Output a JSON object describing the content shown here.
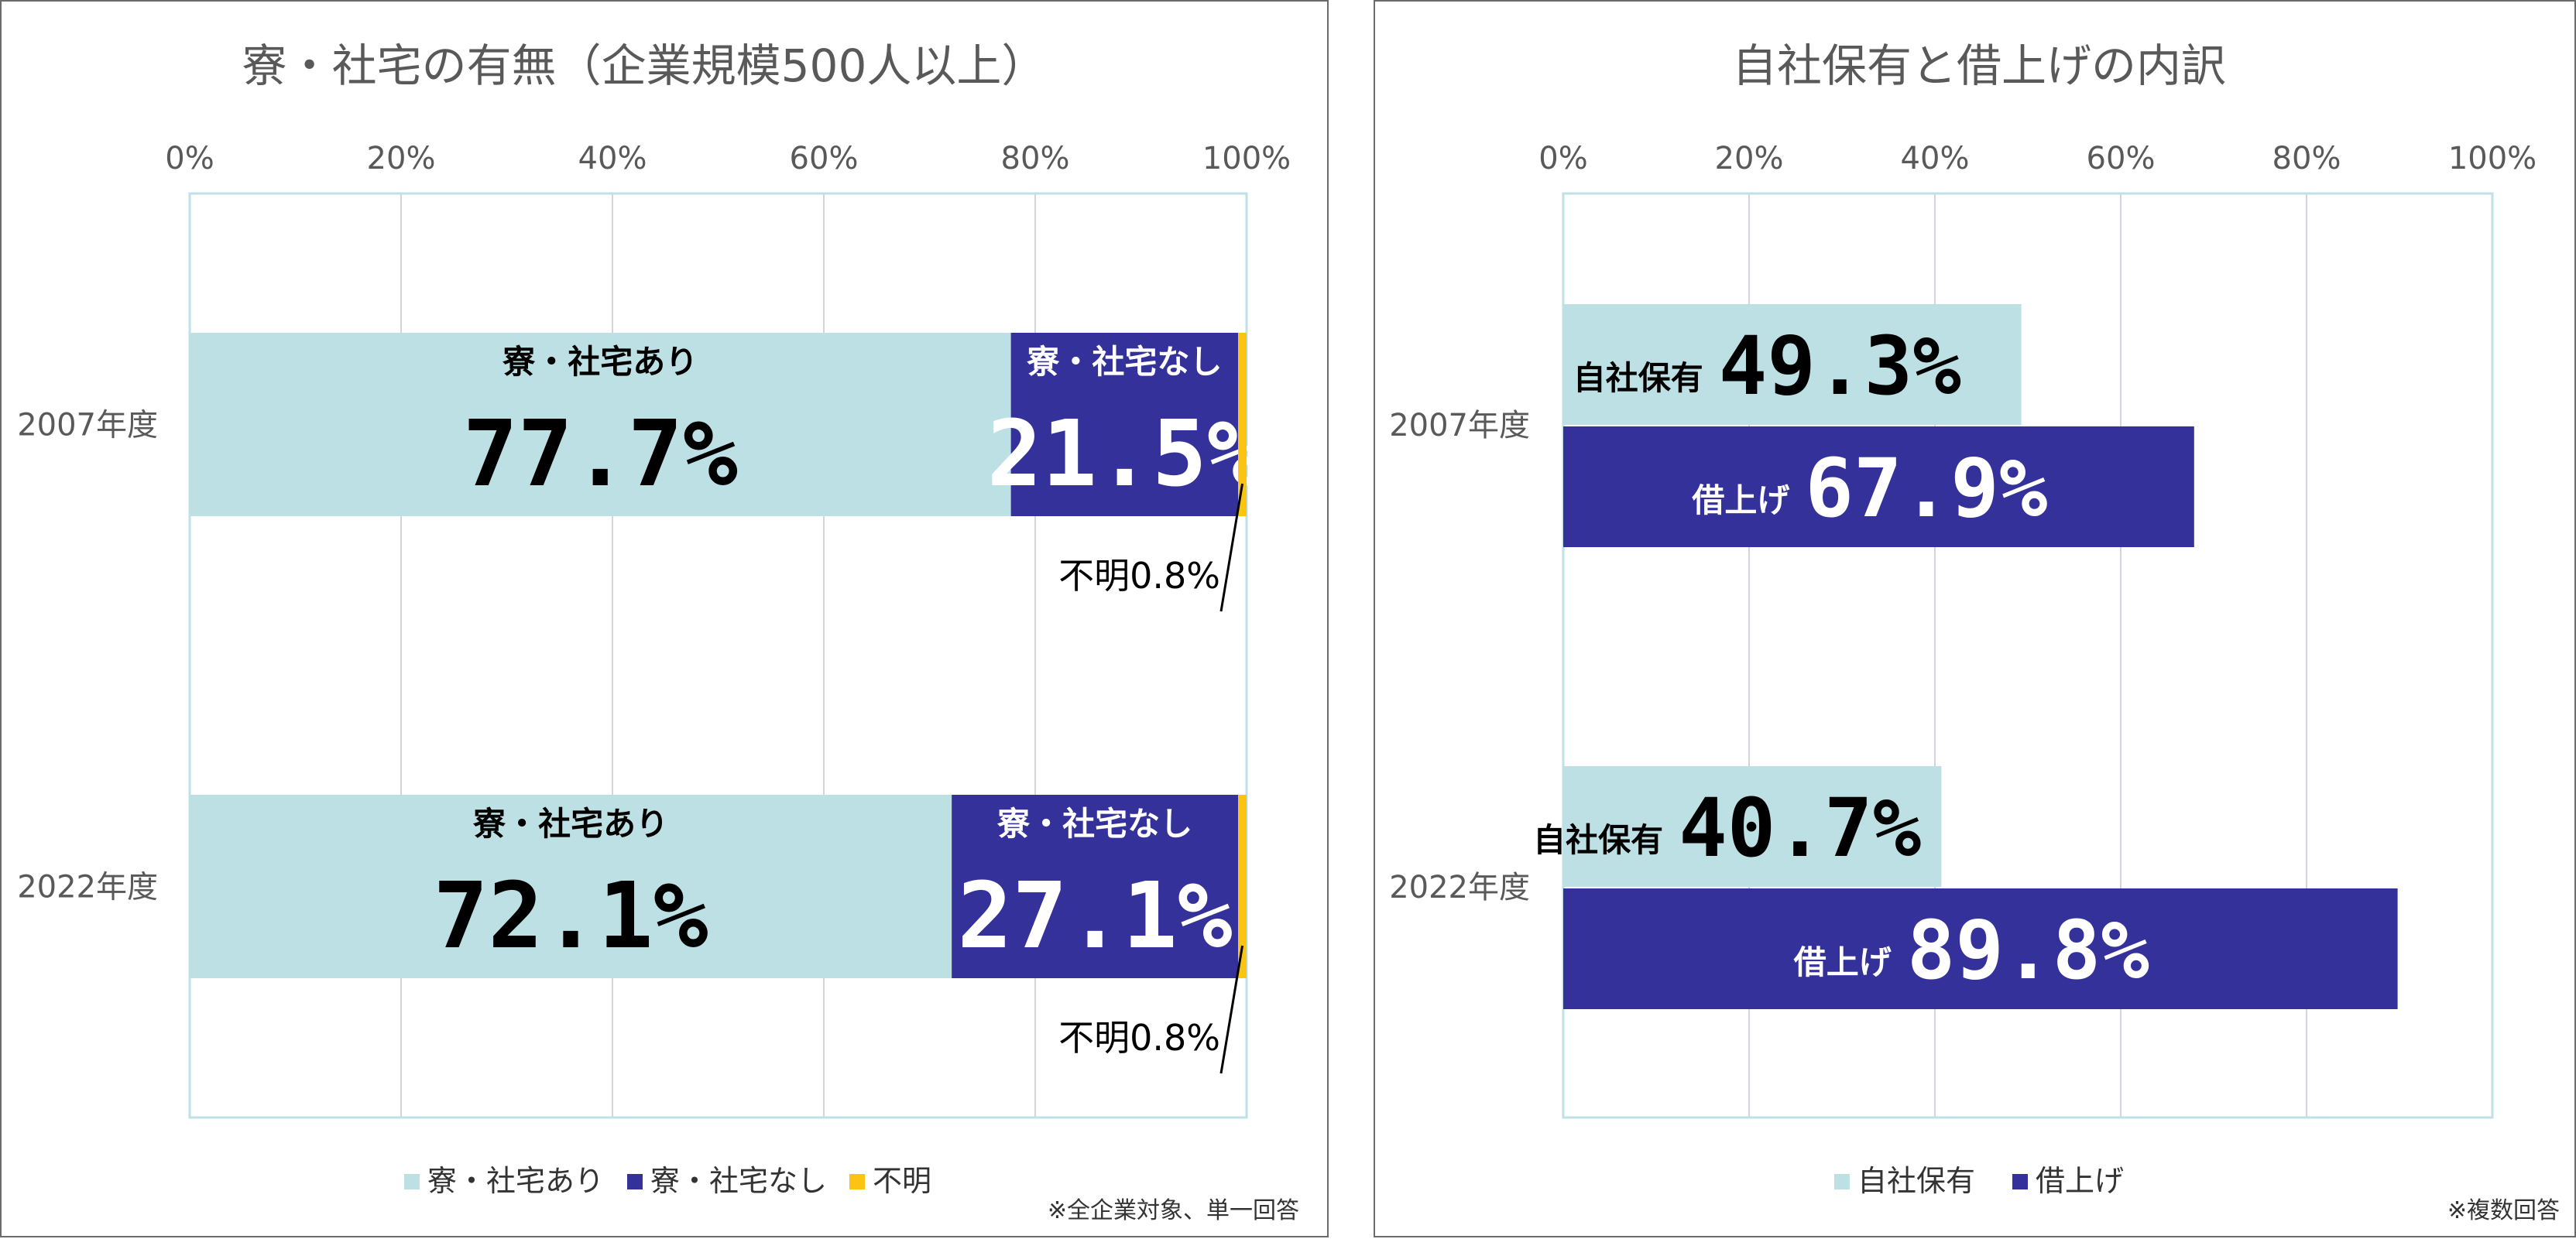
{
  "chart_data": [
    {
      "type": "bar",
      "orientation": "horizontal",
      "stacked": true,
      "title": "寮・社宅の有無（企業規模500人以上）",
      "categories": [
        "2007年度",
        "2022年度"
      ],
      "series": [
        {
          "name": "寮・社宅あり",
          "values": [
            77.7,
            72.1
          ],
          "labels": [
            "77.7%",
            "72.1%"
          ],
          "color": "#bde0e4"
        },
        {
          "name": "寮・社宅なし",
          "values": [
            21.5,
            27.1
          ],
          "labels": [
            "21.5%",
            "27.1%"
          ],
          "color": "#34329a"
        },
        {
          "name": "不明",
          "values": [
            0.8,
            0.8
          ],
          "labels": [
            "不明0.8%",
            "不明0.8%"
          ],
          "color": "#fbc412"
        }
      ],
      "xticks": [
        "0%",
        "20%",
        "40%",
        "60%",
        "80%",
        "100%"
      ],
      "xlim": [
        0,
        100
      ],
      "grid": true,
      "legend": "bottom",
      "note": "※全企業対象、単一回答"
    },
    {
      "type": "bar",
      "orientation": "horizontal",
      "stacked": false,
      "title": "自社保有と借上げの内訳",
      "categories": [
        "2007年度",
        "2022年度"
      ],
      "series": [
        {
          "name": "自社保有",
          "values": [
            49.3,
            40.7
          ],
          "labels": [
            "49.3%",
            "40.7%"
          ],
          "color": "#bde0e4"
        },
        {
          "name": "借上げ",
          "values": [
            67.9,
            89.8
          ],
          "labels": [
            "67.9%",
            "89.8%"
          ],
          "color": "#34329a"
        }
      ],
      "xticks": [
        "0%",
        "20%",
        "40%",
        "60%",
        "80%",
        "100%"
      ],
      "xlim": [
        0,
        100
      ],
      "grid": true,
      "legend": "bottom",
      "note": "※複数回答"
    }
  ]
}
